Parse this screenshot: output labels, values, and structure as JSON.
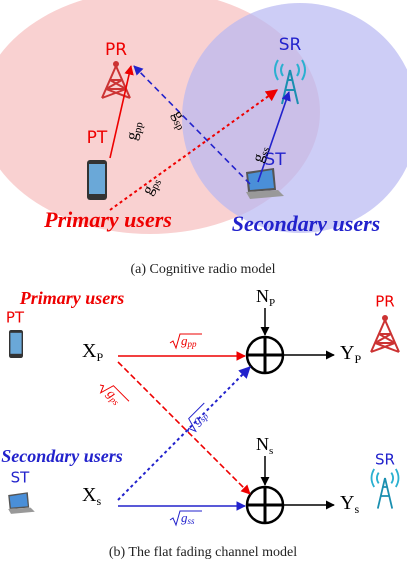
{
  "panel_a": {
    "caption": "(a) Cognitive radio model",
    "nodes": {
      "pr": "PR",
      "sr": "SR",
      "pt": "PT",
      "st": "ST"
    },
    "groups": {
      "primary": "Primary users",
      "secondary": "Secondary users"
    },
    "links": [
      {
        "base": "g",
        "sub": "pp"
      },
      {
        "base": "g",
        "sub": "sp"
      },
      {
        "base": "g",
        "sub": "ps"
      },
      {
        "base": "g",
        "sub": "ss"
      }
    ]
  },
  "panel_b": {
    "caption": "(b) The flat fading channel model",
    "nodes": {
      "pt": "PT",
      "pr": "PR",
      "st": "ST",
      "sr": "SR"
    },
    "groups": {
      "primary": "Primary users",
      "secondary": "Secondary users"
    },
    "signals": {
      "xp": {
        "base": "X",
        "sub": "P"
      },
      "xs": {
        "base": "X",
        "sub": "s"
      },
      "np": {
        "base": "N",
        "sub": "P"
      },
      "ns": {
        "base": "N",
        "sub": "s"
      },
      "yp": {
        "base": "Y",
        "sub": "P"
      },
      "ys": {
        "base": "Y",
        "sub": "s"
      }
    },
    "links": [
      {
        "base": "g",
        "sub": "pp"
      },
      {
        "base": "g",
        "sub": "ps"
      },
      {
        "base": "g",
        "sub": "sp"
      },
      {
        "base": "g",
        "sub": "ss"
      }
    ]
  }
}
